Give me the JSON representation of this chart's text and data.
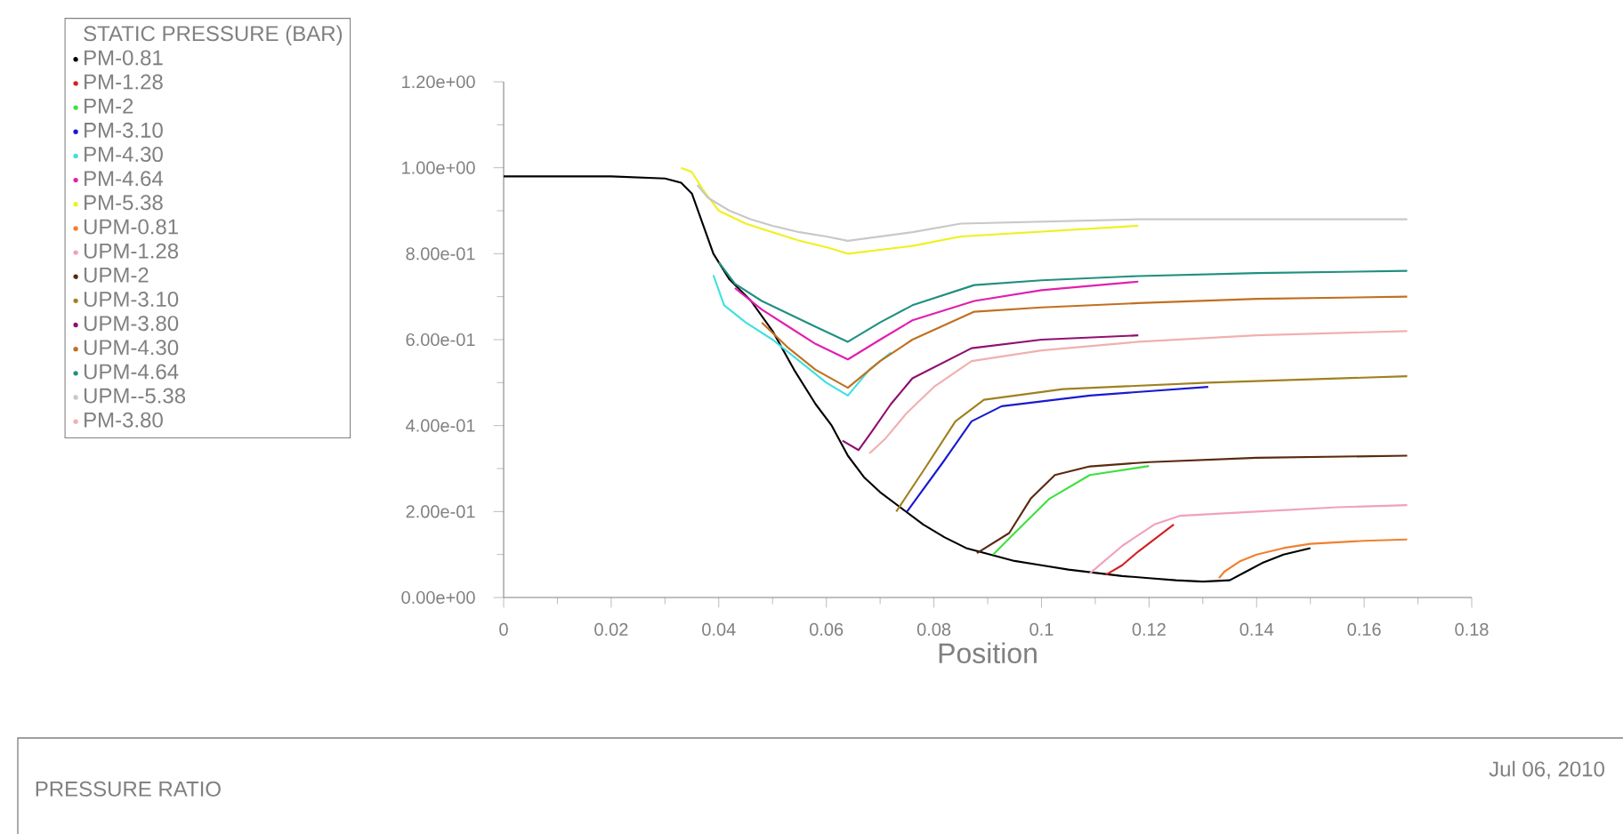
{
  "chart_data": {
    "type": "line",
    "title": "PRESSURE RATIO",
    "xlabel": "Position",
    "legend_title": "STATIC PRESSURE (BAR)",
    "annotations": [
      "Jul 06, 2010"
    ],
    "legend": "top left",
    "marker": "none",
    "line_style": "solid",
    "xlim": [
      0,
      0.18
    ],
    "xticks": [
      0,
      0.02,
      0.04,
      0.06,
      0.08,
      0.1,
      0.12,
      0.14,
      0.16,
      0.18
    ],
    "ylim": [
      0,
      1.2
    ],
    "yticks": [
      {
        "value": 0,
        "label": "0.00e+00"
      },
      {
        "value": 0.2,
        "label": "2.00e-01"
      },
      {
        "value": 0.4,
        "label": "4.00e-01"
      },
      {
        "value": 0.6,
        "label": "6.00e-01"
      },
      {
        "value": 0.8,
        "label": "8.00e-01"
      },
      {
        "value": 1.0,
        "label": "1.00e+00"
      },
      {
        "value": 1.2,
        "label": "1.20e+00"
      }
    ],
    "series": [
      {
        "name": "PM-0.81",
        "color": "#000000",
        "x": [
          0,
          0.01,
          0.02,
          0.03,
          0.033,
          0.035,
          0.037,
          0.039,
          0.042,
          0.046,
          0.05,
          0.054,
          0.058,
          0.061,
          0.064,
          0.067,
          0.07,
          0.078,
          0.082,
          0.086,
          0.095,
          0.1,
          0.105,
          0.115,
          0.12,
          0.125,
          0.13,
          0.135,
          0.138,
          0.141,
          0.145,
          0.15
        ],
        "values": [
          0.98,
          0.98,
          0.98,
          0.975,
          0.965,
          0.94,
          0.87,
          0.8,
          0.74,
          0.69,
          0.62,
          0.53,
          0.45,
          0.4,
          0.33,
          0.28,
          0.245,
          0.17,
          0.14,
          0.115,
          0.085,
          0.075,
          0.065,
          0.05,
          0.045,
          0.04,
          0.037,
          0.04,
          0.06,
          0.08,
          0.1,
          0.115
        ]
      },
      {
        "name": "PM-1.28",
        "color": "#d42020",
        "x": [
          0.112,
          0.115,
          0.118,
          0.1246
        ],
        "values": [
          0.053,
          0.075,
          0.107,
          0.17
        ]
      },
      {
        "name": "PM-2",
        "color": "#40e040",
        "x": [
          0.091,
          0.095,
          0.1015,
          0.109,
          0.12
        ],
        "values": [
          0.1,
          0.15,
          0.23,
          0.285,
          0.306
        ]
      },
      {
        "name": "PM-3.10",
        "color": "#1a1ad0",
        "x": [
          0.075,
          0.0817,
          0.087,
          0.0926,
          0.109,
          0.131
        ],
        "values": [
          0.2,
          0.315,
          0.41,
          0.445,
          0.47,
          0.49
        ]
      },
      {
        "name": "PM-4.30",
        "color": "#40e0e0",
        "x": [
          0.039,
          0.041,
          0.045,
          0.05,
          0.055,
          0.06,
          0.064,
          0.068,
          0.072
        ],
        "values": [
          0.75,
          0.68,
          0.64,
          0.6,
          0.55,
          0.5,
          0.47,
          0.53,
          0.57
        ]
      },
      {
        "name": "PM-4.64",
        "color": "#e020b0",
        "x": [
          0.043,
          0.048,
          0.053,
          0.058,
          0.064,
          0.07,
          0.076,
          0.0875,
          0.1,
          0.118
        ],
        "values": [
          0.72,
          0.67,
          0.63,
          0.59,
          0.554,
          0.6,
          0.645,
          0.69,
          0.715,
          0.735
        ]
      },
      {
        "name": "PM-5.38",
        "color": "#f0f020",
        "x": [
          0.033,
          0.035,
          0.037,
          0.04,
          0.045,
          0.05,
          0.055,
          0.06,
          0.064,
          0.076,
          0.085,
          0.118
        ],
        "values": [
          1.0,
          0.99,
          0.95,
          0.9,
          0.87,
          0.85,
          0.83,
          0.815,
          0.8,
          0.818,
          0.84,
          0.865
        ]
      },
      {
        "name": "UPM-0.81",
        "color": "#f08030",
        "x": [
          0.133,
          0.134,
          0.137,
          0.14,
          0.145,
          0.15,
          0.16,
          0.168
        ],
        "values": [
          0.045,
          0.06,
          0.085,
          0.1,
          0.115,
          0.125,
          0.132,
          0.135
        ]
      },
      {
        "name": "UPM-1.28",
        "color": "#f0a0c0",
        "x": [
          0.109,
          0.115,
          0.121,
          0.1257,
          0.14,
          0.155,
          0.168
        ],
        "values": [
          0.056,
          0.12,
          0.17,
          0.19,
          0.2,
          0.21,
          0.215
        ]
      },
      {
        "name": "UPM-2",
        "color": "#5a2a10",
        "x": [
          0.088,
          0.094,
          0.098,
          0.1025,
          0.109,
          0.12,
          0.14,
          0.168
        ],
        "values": [
          0.103,
          0.15,
          0.23,
          0.285,
          0.305,
          0.315,
          0.325,
          0.33
        ]
      },
      {
        "name": "UPM-3.10",
        "color": "#a08020",
        "x": [
          0.073,
          0.0783,
          0.084,
          0.0893,
          0.104,
          0.131,
          0.168
        ],
        "values": [
          0.2,
          0.3,
          0.41,
          0.46,
          0.485,
          0.5,
          0.515
        ]
      },
      {
        "name": "UPM-3.80",
        "color": "#901070",
        "x": [
          0.063,
          0.066,
          0.0684,
          0.072,
          0.076,
          0.087,
          0.1,
          0.118
        ],
        "values": [
          0.365,
          0.343,
          0.385,
          0.45,
          0.51,
          0.58,
          0.6,
          0.61
        ]
      },
      {
        "name": "UPM-4.30",
        "color": "#c07020",
        "x": [
          0.048,
          0.053,
          0.058,
          0.064,
          0.07,
          0.076,
          0.0875,
          0.1,
          0.118,
          0.14,
          0.168
        ],
        "values": [
          0.64,
          0.58,
          0.53,
          0.488,
          0.55,
          0.6,
          0.665,
          0.675,
          0.685,
          0.695,
          0.7
        ]
      },
      {
        "name": "UPM-4.64",
        "color": "#209080",
        "x": [
          0.04,
          0.043,
          0.048,
          0.053,
          0.058,
          0.064,
          0.07,
          0.076,
          0.0875,
          0.1,
          0.118,
          0.14,
          0.168
        ],
        "values": [
          0.78,
          0.73,
          0.69,
          0.66,
          0.63,
          0.595,
          0.64,
          0.68,
          0.727,
          0.738,
          0.748,
          0.755,
          0.76
        ]
      },
      {
        "name": "UPM--5.38",
        "color": "#c8c8c8",
        "x": [
          0.036,
          0.038,
          0.042,
          0.046,
          0.05,
          0.055,
          0.06,
          0.064,
          0.076,
          0.085,
          0.118,
          0.168
        ],
        "values": [
          0.96,
          0.93,
          0.9,
          0.88,
          0.865,
          0.85,
          0.84,
          0.83,
          0.85,
          0.87,
          0.88,
          0.88
        ]
      },
      {
        "name": "PM-3.80",
        "color": "#f0b0b0",
        "x": [
          0.068,
          0.071,
          0.075,
          0.08,
          0.087,
          0.1,
          0.118,
          0.14,
          0.168
        ],
        "values": [
          0.335,
          0.37,
          0.43,
          0.49,
          0.55,
          0.575,
          0.595,
          0.61,
          0.62
        ]
      }
    ]
  }
}
